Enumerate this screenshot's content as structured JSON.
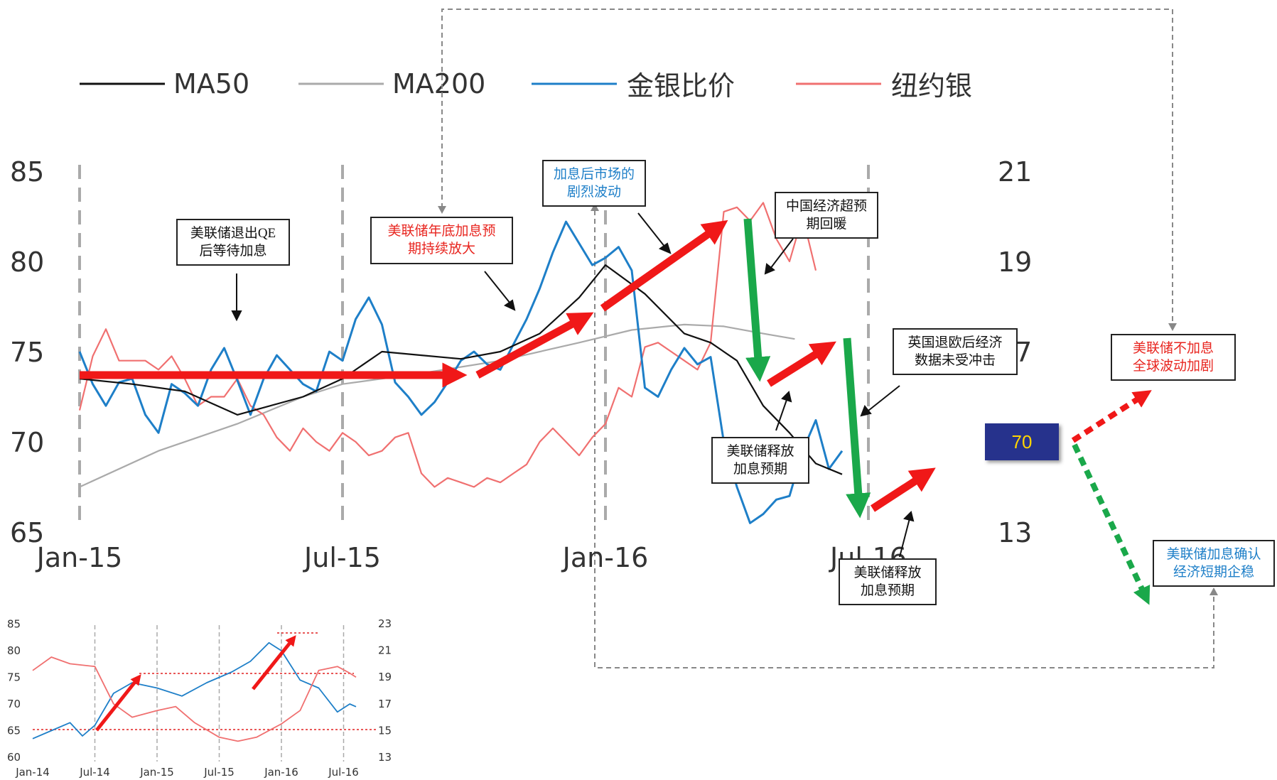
{
  "legend": [
    {
      "label": "MA50",
      "color": "#111111"
    },
    {
      "label": "MA200",
      "color": "#aaaaaa"
    },
    {
      "label": "金银比价",
      "color": "#1e7fc8"
    },
    {
      "label": "纽约银",
      "color": "#f07070"
    }
  ],
  "axes": {
    "left_ticks": [
      "85",
      "80",
      "75",
      "70",
      "65"
    ],
    "right_ticks": [
      "21",
      "19",
      "17",
      "13"
    ],
    "x_ticks": [
      "Jan-15",
      "Jul-15",
      "Jan-16",
      "Jul-16"
    ]
  },
  "annotations": {
    "fed_qe": "美联储退出QE后等待加息",
    "fed_qe_l1": "美联储退出QE",
    "fed_qe_l2": "后等待加息",
    "year_end_l1": "美联储年底加息预",
    "year_end_l2": "期持续放大",
    "post_hike_l1": "加息后市场的",
    "post_hike_l2": "剧烈波动",
    "china_l1": "中国经济超预",
    "china_l2": "期回暖",
    "brexit_l1": "英国退欧后经济",
    "brexit_l2": "数据未受冲击",
    "fed_release_a_l1": "美联储释放",
    "fed_release_a_l2": "加息预期",
    "fed_release_b_l1": "美联储释放",
    "fed_release_b_l2": "加息预期",
    "no_hike_l1": "美联储不加息",
    "no_hike_l2": "全球波动加剧",
    "hike_confirm_l1": "美联储加息确认",
    "hike_confirm_l2": "经济短期企稳"
  },
  "current_value": "70",
  "colors": {
    "ratio": "#1e7fc8",
    "silver": "#f07070",
    "ma50": "#111111",
    "ma200": "#aaaaaa",
    "up_arrow": "#f01818",
    "down_arrow": "#1aa84a",
    "badge_bg": "#26328c",
    "badge_text": "#ffd400"
  },
  "chart_data": [
    {
      "type": "line",
      "x_ticks": [
        "Jan-15",
        "Jul-15",
        "Jan-16",
        "Jul-16"
      ],
      "y_left_ticks": [
        85,
        80,
        75,
        70,
        65
      ],
      "y_right_ticks": [
        21,
        19,
        17,
        13
      ],
      "legend_placement": "top",
      "grid": "vertical dashed lines at Jan-15, Jul-15, Jan-16, Jul-16",
      "series": [
        {
          "name": "金银比价",
          "axis": "left",
          "points": [
            [
              0.0,
              75.0
            ],
            [
              0.05,
              73.2
            ],
            [
              0.1,
              72.0
            ],
            [
              0.15,
              73.3
            ],
            [
              0.2,
              73.5
            ],
            [
              0.25,
              71.5
            ],
            [
              0.3,
              70.5
            ],
            [
              0.35,
              73.2
            ],
            [
              0.4,
              72.7
            ],
            [
              0.45,
              72.0
            ],
            [
              0.5,
              74.0
            ],
            [
              0.55,
              75.2
            ],
            [
              0.6,
              73.4
            ],
            [
              0.65,
              71.5
            ],
            [
              0.7,
              73.5
            ],
            [
              0.75,
              74.8
            ],
            [
              0.8,
              74.0
            ],
            [
              0.85,
              73.2
            ],
            [
              0.9,
              72.8
            ],
            [
              0.95,
              75.0
            ],
            [
              1.0,
              74.5
            ],
            [
              1.05,
              76.8
            ],
            [
              1.1,
              78.0
            ],
            [
              1.15,
              76.5
            ],
            [
              1.2,
              73.3
            ],
            [
              1.25,
              72.5
            ],
            [
              1.3,
              71.5
            ],
            [
              1.35,
              72.2
            ],
            [
              1.4,
              73.3
            ],
            [
              1.45,
              74.5
            ],
            [
              1.5,
              75.0
            ],
            [
              1.55,
              74.3
            ],
            [
              1.6,
              74.0
            ],
            [
              1.65,
              75.4
            ],
            [
              1.7,
              76.8
            ],
            [
              1.75,
              78.5
            ],
            [
              1.8,
              80.5
            ],
            [
              1.85,
              82.2
            ],
            [
              1.9,
              81.0
            ],
            [
              1.95,
              79.8
            ],
            [
              2.0,
              80.2
            ],
            [
              2.05,
              80.8
            ],
            [
              2.1,
              79.5
            ],
            [
              2.15,
              73.0
            ],
            [
              2.2,
              72.5
            ],
            [
              2.25,
              74.0
            ],
            [
              2.3,
              75.2
            ],
            [
              2.35,
              74.3
            ],
            [
              2.4,
              74.7
            ],
            [
              2.45,
              70.0
            ],
            [
              2.5,
              67.5
            ],
            [
              2.55,
              65.5
            ],
            [
              2.6,
              66.0
            ],
            [
              2.65,
              66.8
            ],
            [
              2.7,
              67.0
            ],
            [
              2.75,
              69.5
            ],
            [
              2.8,
              71.2
            ],
            [
              2.85,
              68.5
            ],
            [
              2.9,
              69.5
            ]
          ]
        },
        {
          "name": "MA50",
          "axis": "left",
          "points": [
            [
              0.0,
              73.5
            ],
            [
              0.2,
              73.2
            ],
            [
              0.4,
              72.8
            ],
            [
              0.6,
              71.5
            ],
            [
              0.85,
              72.5
            ],
            [
              1.0,
              73.5
            ],
            [
              1.15,
              75.0
            ],
            [
              1.3,
              74.8
            ],
            [
              1.45,
              74.6
            ],
            [
              1.6,
              75.0
            ],
            [
              1.75,
              76.0
            ],
            [
              1.9,
              78.0
            ],
            [
              2.0,
              79.8
            ],
            [
              2.15,
              78.2
            ],
            [
              2.3,
              76.0
            ],
            [
              2.4,
              75.5
            ],
            [
              2.5,
              74.5
            ],
            [
              2.6,
              72.0
            ],
            [
              2.7,
              70.5
            ],
            [
              2.8,
              68.8
            ],
            [
              2.9,
              68.2
            ]
          ]
        },
        {
          "name": "MA200",
          "axis": "left",
          "points": [
            [
              0.0,
              67.5
            ],
            [
              0.3,
              69.5
            ],
            [
              0.6,
              71.0
            ],
            [
              0.85,
              72.5
            ],
            [
              1.0,
              73.2
            ],
            [
              1.3,
              73.8
            ],
            [
              1.6,
              74.5
            ],
            [
              1.9,
              75.5
            ],
            [
              2.1,
              76.2
            ],
            [
              2.3,
              76.5
            ],
            [
              2.45,
              76.4
            ],
            [
              2.6,
              76.0
            ],
            [
              2.72,
              75.7
            ]
          ]
        },
        {
          "name": "纽约银",
          "axis": "right",
          "points": [
            [
              0.0,
              15.7
            ],
            [
              0.05,
              16.9
            ],
            [
              0.1,
              17.5
            ],
            [
              0.15,
              16.8
            ],
            [
              0.2,
              16.8
            ],
            [
              0.25,
              16.8
            ],
            [
              0.3,
              16.6
            ],
            [
              0.35,
              16.9
            ],
            [
              0.4,
              16.4
            ],
            [
              0.45,
              15.8
            ],
            [
              0.5,
              16.0
            ],
            [
              0.55,
              16.0
            ],
            [
              0.6,
              16.4
            ],
            [
              0.65,
              15.8
            ],
            [
              0.7,
              15.6
            ],
            [
              0.75,
              15.1
            ],
            [
              0.8,
              14.8
            ],
            [
              0.85,
              15.3
            ],
            [
              0.9,
              15.0
            ],
            [
              0.95,
              14.8
            ],
            [
              1.0,
              15.2
            ],
            [
              1.05,
              15.0
            ],
            [
              1.1,
              14.7
            ],
            [
              1.15,
              14.8
            ],
            [
              1.2,
              15.1
            ],
            [
              1.25,
              15.2
            ],
            [
              1.3,
              14.3
            ],
            [
              1.35,
              14.0
            ],
            [
              1.4,
              14.2
            ],
            [
              1.45,
              14.1
            ],
            [
              1.5,
              14.0
            ],
            [
              1.55,
              14.2
            ],
            [
              1.6,
              14.1
            ],
            [
              1.65,
              14.3
            ],
            [
              1.7,
              14.5
            ],
            [
              1.75,
              15.0
            ],
            [
              1.8,
              15.3
            ],
            [
              1.85,
              15.0
            ],
            [
              1.9,
              14.7
            ],
            [
              1.95,
              15.1
            ],
            [
              2.0,
              15.4
            ],
            [
              2.05,
              16.2
            ],
            [
              2.1,
              16.0
            ],
            [
              2.15,
              17.1
            ],
            [
              2.2,
              17.2
            ],
            [
              2.25,
              17.0
            ],
            [
              2.3,
              16.8
            ],
            [
              2.35,
              16.6
            ],
            [
              2.4,
              17.2
            ],
            [
              2.45,
              20.1
            ],
            [
              2.5,
              20.2
            ],
            [
              2.55,
              19.9
            ],
            [
              2.6,
              20.3
            ],
            [
              2.65,
              19.5
            ],
            [
              2.7,
              19.0
            ],
            [
              2.75,
              20.0
            ],
            [
              2.8,
              18.8
            ]
          ]
        }
      ]
    },
    {
      "type": "line",
      "x_ticks": [
        "Jan-14",
        "Jul-14",
        "Jan-15",
        "Jul-15",
        "Jan-16",
        "Jul-16"
      ],
      "y_left_ticks": [
        85,
        80,
        75,
        70,
        65,
        60
      ],
      "y_right_ticks": [
        23,
        21,
        19,
        17,
        15,
        13
      ],
      "series": [
        {
          "name": "金银比价",
          "axis": "left",
          "points": [
            [
              0.0,
              63.5
            ],
            [
              0.3,
              65.0
            ],
            [
              0.6,
              66.5
            ],
            [
              0.8,
              64.0
            ],
            [
              1.0,
              66.0
            ],
            [
              1.3,
              72.0
            ],
            [
              1.6,
              74.0
            ],
            [
              2.0,
              73.0
            ],
            [
              2.4,
              71.5
            ],
            [
              2.8,
              74.0
            ],
            [
              3.2,
              76.0
            ],
            [
              3.5,
              78.0
            ],
            [
              3.8,
              81.5
            ],
            [
              4.0,
              80.0
            ],
            [
              4.3,
              74.5
            ],
            [
              4.6,
              73.0
            ],
            [
              4.9,
              68.5
            ],
            [
              5.1,
              70.0
            ],
            [
              5.2,
              69.5
            ]
          ]
        },
        {
          "name": "纽约银",
          "axis": "right",
          "points": [
            [
              0.0,
              19.5
            ],
            [
              0.3,
              20.5
            ],
            [
              0.6,
              20.0
            ],
            [
              1.0,
              19.8
            ],
            [
              1.3,
              17.0
            ],
            [
              1.6,
              16.0
            ],
            [
              2.0,
              16.5
            ],
            [
              2.3,
              16.8
            ],
            [
              2.6,
              15.6
            ],
            [
              3.0,
              14.5
            ],
            [
              3.3,
              14.2
            ],
            [
              3.6,
              14.5
            ],
            [
              4.0,
              15.5
            ],
            [
              4.3,
              16.5
            ],
            [
              4.6,
              19.5
            ],
            [
              4.9,
              19.8
            ],
            [
              5.1,
              19.3
            ],
            [
              5.2,
              19.0
            ]
          ]
        }
      ]
    }
  ]
}
